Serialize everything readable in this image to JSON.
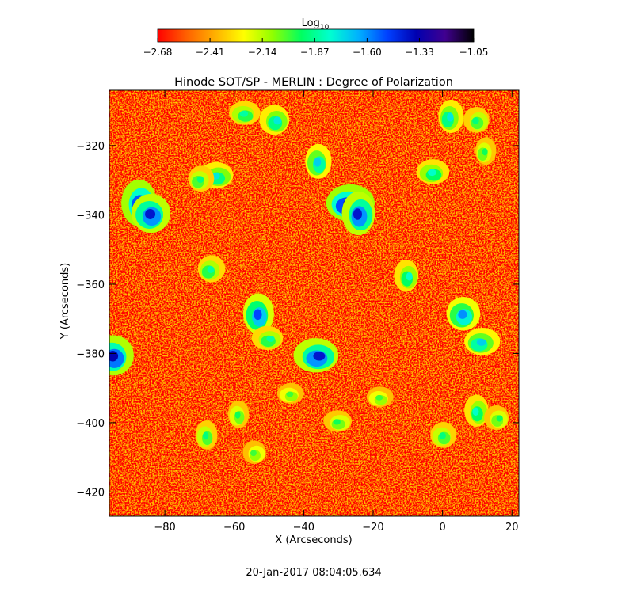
{
  "chart_data": {
    "type": "heatmap",
    "title": "Hinode SOT/SP - MERLIN : Degree of Polarization",
    "xlabel": "X (Arcseconds)",
    "ylabel": "Y (Arcseconds)",
    "xlim": [
      -96,
      22
    ],
    "ylim": [
      -427,
      -304
    ],
    "x_ticks": [
      -80,
      -60,
      -40,
      -20,
      0,
      20
    ],
    "x_tick_labels": [
      "−80",
      "−60",
      "−40",
      "−20",
      "0",
      "20"
    ],
    "y_ticks": [
      -320,
      -340,
      -360,
      -380,
      -400,
      -420
    ],
    "y_tick_labels": [
      "−320",
      "−340",
      "−360",
      "−380",
      "−400",
      "−420"
    ],
    "colorbar": {
      "label_main": "Log",
      "label_sub": "10",
      "range": [
        -2.68,
        -1.05
      ],
      "ticks": [
        -2.68,
        -2.41,
        -2.14,
        -1.87,
        -1.6,
        -1.33,
        -1.05
      ],
      "tick_labels": [
        "−2.68",
        "−2.41",
        "−2.14",
        "−1.87",
        "−1.60",
        "−1.33",
        "−1.05"
      ],
      "colormap": [
        "#ff0000",
        "#ff6000",
        "#ffb000",
        "#ffff00",
        "#90ff00",
        "#00ff60",
        "#00ffd0",
        "#00b0ff",
        "#0040ff",
        "#0000b0",
        "#400090",
        "#000000"
      ]
    },
    "grid": false,
    "background_level": -2.55,
    "polarization_patches": [
      {
        "x": -87,
        "y": -337,
        "level": -1.3
      },
      {
        "x": -84,
        "y": -340,
        "level": -1.4
      },
      {
        "x": -27,
        "y": -337,
        "level": -1.28
      },
      {
        "x": -24,
        "y": -340,
        "level": -1.4
      },
      {
        "x": -95,
        "y": -381,
        "level": -1.35
      },
      {
        "x": -36,
        "y": -381,
        "level": -1.4
      },
      {
        "x": -53,
        "y": -369,
        "level": -1.5
      },
      {
        "x": -67,
        "y": -356,
        "level": -1.85
      },
      {
        "x": -65,
        "y": -329,
        "level": -1.75
      },
      {
        "x": -36,
        "y": -325,
        "level": -1.7
      },
      {
        "x": -48,
        "y": -313,
        "level": -1.75
      },
      {
        "x": -57,
        "y": -311,
        "level": -1.85
      },
      {
        "x": 2,
        "y": -312,
        "level": -1.75
      },
      {
        "x": 10,
        "y": -313,
        "level": -1.9
      },
      {
        "x": -3,
        "y": -328,
        "level": -1.8
      },
      {
        "x": -10,
        "y": -358,
        "level": -1.8
      },
      {
        "x": 6,
        "y": -369,
        "level": -1.6
      },
      {
        "x": 11,
        "y": -377,
        "level": -1.7
      },
      {
        "x": 10,
        "y": -397,
        "level": -1.8
      },
      {
        "x": 0,
        "y": -404,
        "level": -1.9
      },
      {
        "x": -50,
        "y": -376,
        "level": -1.85
      },
      {
        "x": -68,
        "y": -404,
        "level": -1.9
      },
      {
        "x": -70,
        "y": -330,
        "level": -1.9
      },
      {
        "x": -30,
        "y": -400,
        "level": -1.95
      },
      {
        "x": -59,
        "y": -398,
        "level": -1.95
      },
      {
        "x": 16,
        "y": -399,
        "level": -1.95
      },
      {
        "x": -18,
        "y": -393,
        "level": -2.0
      },
      {
        "x": 12,
        "y": -322,
        "level": -1.95
      },
      {
        "x": -54,
        "y": -409,
        "level": -2.0
      },
      {
        "x": -44,
        "y": -392,
        "level": -2.0
      }
    ]
  },
  "footer": {
    "timestamp": "20-Jan-2017 08:04:05.634"
  }
}
